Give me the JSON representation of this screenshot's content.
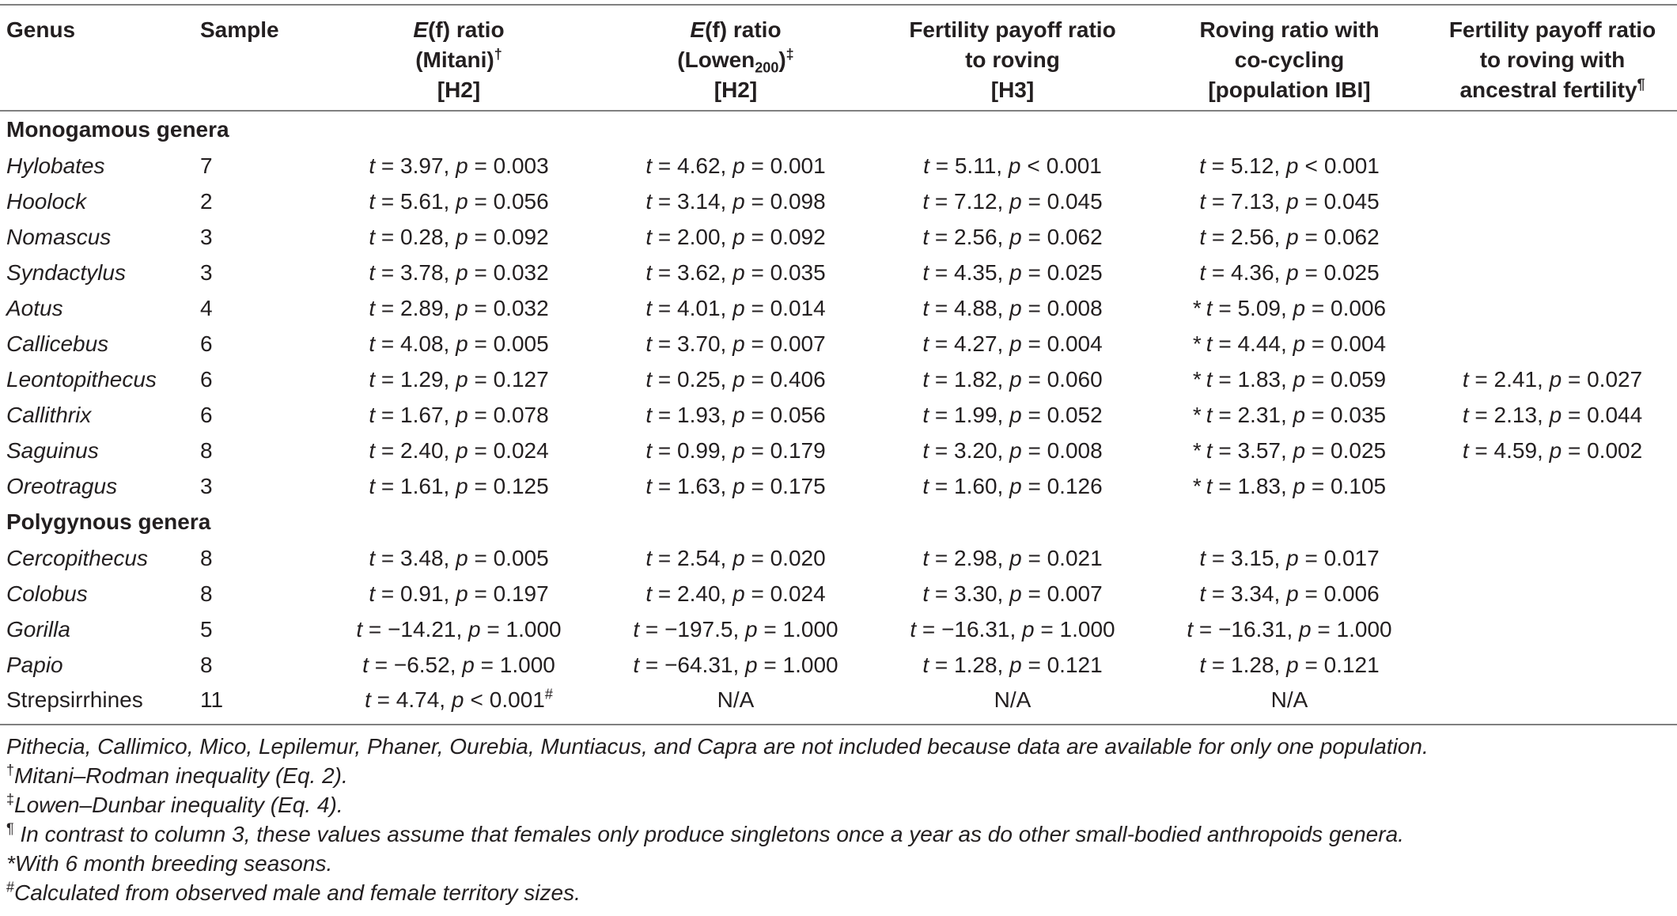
{
  "headers": {
    "genus": "Genus",
    "sample": "Sample",
    "col1": {
      "pre": "E",
      "mid": "(f)",
      "post": " ratio",
      "line2": "(Mitani)",
      "sup2": "†",
      "line3": "[H2]"
    },
    "col2": {
      "pre": "E",
      "mid": "(f)",
      "post": " ratio",
      "line2a": "(Lowen",
      "sub2": "200",
      "line2b": ")",
      "sup2": "‡",
      "line3": "[H2]"
    },
    "col3": {
      "line1": "Fertility payoff ratio",
      "line2": "to roving",
      "line3": "[H3]"
    },
    "col4": {
      "line1": "Roving ratio with",
      "line2": "co-cycling",
      "line3": "[population IBI]"
    },
    "col5": {
      "line1": "Fertility payoff ratio",
      "line2": "to roving with",
      "line3": "ancestral fertility",
      "sup3": "¶"
    }
  },
  "sections": {
    "monogamous": "Monogamous genera",
    "polygynous": "Polygynous genera"
  },
  "rows": {
    "hylobates": {
      "genus": "Hylobates",
      "sample": "7",
      "c1": {
        "t": "3.97",
        "p": "0.003"
      },
      "c2": {
        "t": "4.62",
        "p": "0.001"
      },
      "c3": {
        "t": "5.11",
        "op": "<",
        "p": "0.001"
      },
      "c4": {
        "star": "",
        "t": "5.12",
        "op": "<",
        "p": "0.001"
      }
    },
    "hoolock": {
      "genus": "Hoolock",
      "sample": "2",
      "c1": {
        "t": "5.61",
        "p": "0.056"
      },
      "c2": {
        "t": "3.14",
        "p": "0.098"
      },
      "c3": {
        "t": "7.12",
        "p": "0.045"
      },
      "c4": {
        "t": "7.13",
        "p": "0.045"
      }
    },
    "nomascus": {
      "genus": "Nomascus",
      "sample": "3",
      "c1": {
        "t": "0.28",
        "p": "0.092"
      },
      "c2": {
        "t": "2.00",
        "p": "0.092"
      },
      "c3": {
        "t": "2.56",
        "p": "0.062"
      },
      "c4": {
        "t": "2.56",
        "p": "0.062"
      }
    },
    "syndactylus": {
      "genus": "Syndactylus",
      "sample": "3",
      "c1": {
        "t": "3.78",
        "p": "0.032"
      },
      "c2": {
        "t": "3.62",
        "p": "0.035"
      },
      "c3": {
        "t": "4.35",
        "p": "0.025"
      },
      "c4": {
        "t": "4.36",
        "p": "0.025"
      }
    },
    "aotus": {
      "genus": "Aotus",
      "sample": "4",
      "c1": {
        "t": "2.89",
        "p": "0.032"
      },
      "c2": {
        "t": "4.01",
        "p": "0.014"
      },
      "c3": {
        "t": "4.88",
        "p": "0.008"
      },
      "c4": {
        "star": "*",
        "t": "5.09",
        "p": "0.006"
      }
    },
    "callicebus": {
      "genus": "Callicebus",
      "sample": "6",
      "c1": {
        "t": "4.08",
        "p": "0.005"
      },
      "c2": {
        "t": "3.70",
        "p": "0.007"
      },
      "c3": {
        "t": "4.27",
        "p": "0.004"
      },
      "c4": {
        "star": "*",
        "t": "4.44",
        "p": "0.004"
      }
    },
    "leontopithecus": {
      "genus": "Leontopithecus",
      "sample": "6",
      "c1": {
        "t": "1.29",
        "p": "0.127"
      },
      "c2": {
        "t": "0.25",
        "p": "0.406"
      },
      "c3": {
        "t": "1.82",
        "p": "0.060"
      },
      "c4": {
        "star": "*",
        "t": "1.83",
        "p": "0.059"
      },
      "c5": {
        "t": "2.41",
        "p": "0.027"
      }
    },
    "callithrix": {
      "genus": "Callithrix",
      "sample": "6",
      "c1": {
        "t": "1.67",
        "p": "0.078"
      },
      "c2": {
        "t": "1.93",
        "p": "0.056"
      },
      "c3": {
        "t": "1.99",
        "p": "0.052"
      },
      "c4": {
        "star": "*",
        "t": "2.31",
        "p": "0.035"
      },
      "c5": {
        "t": "2.13",
        "p": "0.044"
      }
    },
    "saguinus": {
      "genus": "Saguinus",
      "sample": "8",
      "c1": {
        "t": "2.40",
        "p": "0.024"
      },
      "c2": {
        "t": "0.99",
        "p": "0.179"
      },
      "c3": {
        "t": "3.20",
        "p": "0.008"
      },
      "c4": {
        "star": "*",
        "t": "3.57",
        "p": "0.025"
      },
      "c5": {
        "t": "4.59",
        "p": "0.002"
      }
    },
    "oreotragus": {
      "genus": "Oreotragus",
      "sample": "3",
      "c1": {
        "t": "1.61",
        "p": "0.125"
      },
      "c2": {
        "t": "1.63",
        "p": "0.175"
      },
      "c3": {
        "t": "1.60",
        "p": "0.126"
      },
      "c4": {
        "star": "*",
        "t": "1.83",
        "p": "0.105"
      }
    },
    "cercopithecus": {
      "genus": "Cercopithecus",
      "sample": "8",
      "c1": {
        "t": "3.48",
        "p": "0.005"
      },
      "c2": {
        "t": "2.54",
        "p": "0.020"
      },
      "c3": {
        "t": "2.98",
        "p": "0.021"
      },
      "c4": {
        "t": "3.15",
        "p": "0.017"
      }
    },
    "colobus": {
      "genus": "Colobus",
      "sample": "8",
      "c1": {
        "t": "0.91",
        "p": "0.197"
      },
      "c2": {
        "t": "2.40",
        "p": "0.024"
      },
      "c3": {
        "t": "3.30",
        "p": "0.007"
      },
      "c4": {
        "t": "3.34",
        "p": "0.006"
      }
    },
    "gorilla": {
      "genus": "Gorilla",
      "sample": "5",
      "c1": {
        "t": "−14.21",
        "p": "1.000"
      },
      "c2": {
        "t": "−197.5",
        "p": "1.000"
      },
      "c3": {
        "t": "−16.31",
        "p": "1.000"
      },
      "c4": {
        "t": "−16.31",
        "p": "1.000"
      }
    },
    "papio": {
      "genus": "Papio",
      "sample": "8",
      "c1": {
        "t": "−6.52",
        "p": "1.000"
      },
      "c2": {
        "t": "−64.31",
        "p": "1.000"
      },
      "c3": {
        "t": "1.28",
        "p": "0.121"
      },
      "c4": {
        "t": "1.28",
        "p": "0.121"
      }
    },
    "strepsirrhines": {
      "genus": "Strepsirrhines",
      "sample": "11",
      "c1": {
        "t": "4.74",
        "op": "<",
        "p": "0.001",
        "mark": "#"
      },
      "c2": "N/A",
      "c3": "N/A",
      "c4": "N/A"
    }
  },
  "notes": {
    "n1": "Pithecia, Callimico, Mico, Lepilemur, Phaner, Ourebia, Muntiacus, and Capra are not included because data are available for only one population.",
    "n2_mark": "†",
    "n2": "Mitani–Rodman inequality (Eq. 2).",
    "n3_mark": "‡",
    "n3": "Lowen–Dunbar inequality (Eq. 4).",
    "n4_mark": "¶",
    "n4": " In contrast to column 3, these values assume that females only produce singletons once a year as do other small-bodied anthropoids genera.",
    "n5_mark": "*",
    "n5": "With 6 month breeding seasons.",
    "n6_mark": "#",
    "n6": "Calculated from observed male and female territory sizes."
  },
  "labels": {
    "t": "t",
    "p": "p",
    "eq": " = ",
    "sep": ", "
  }
}
